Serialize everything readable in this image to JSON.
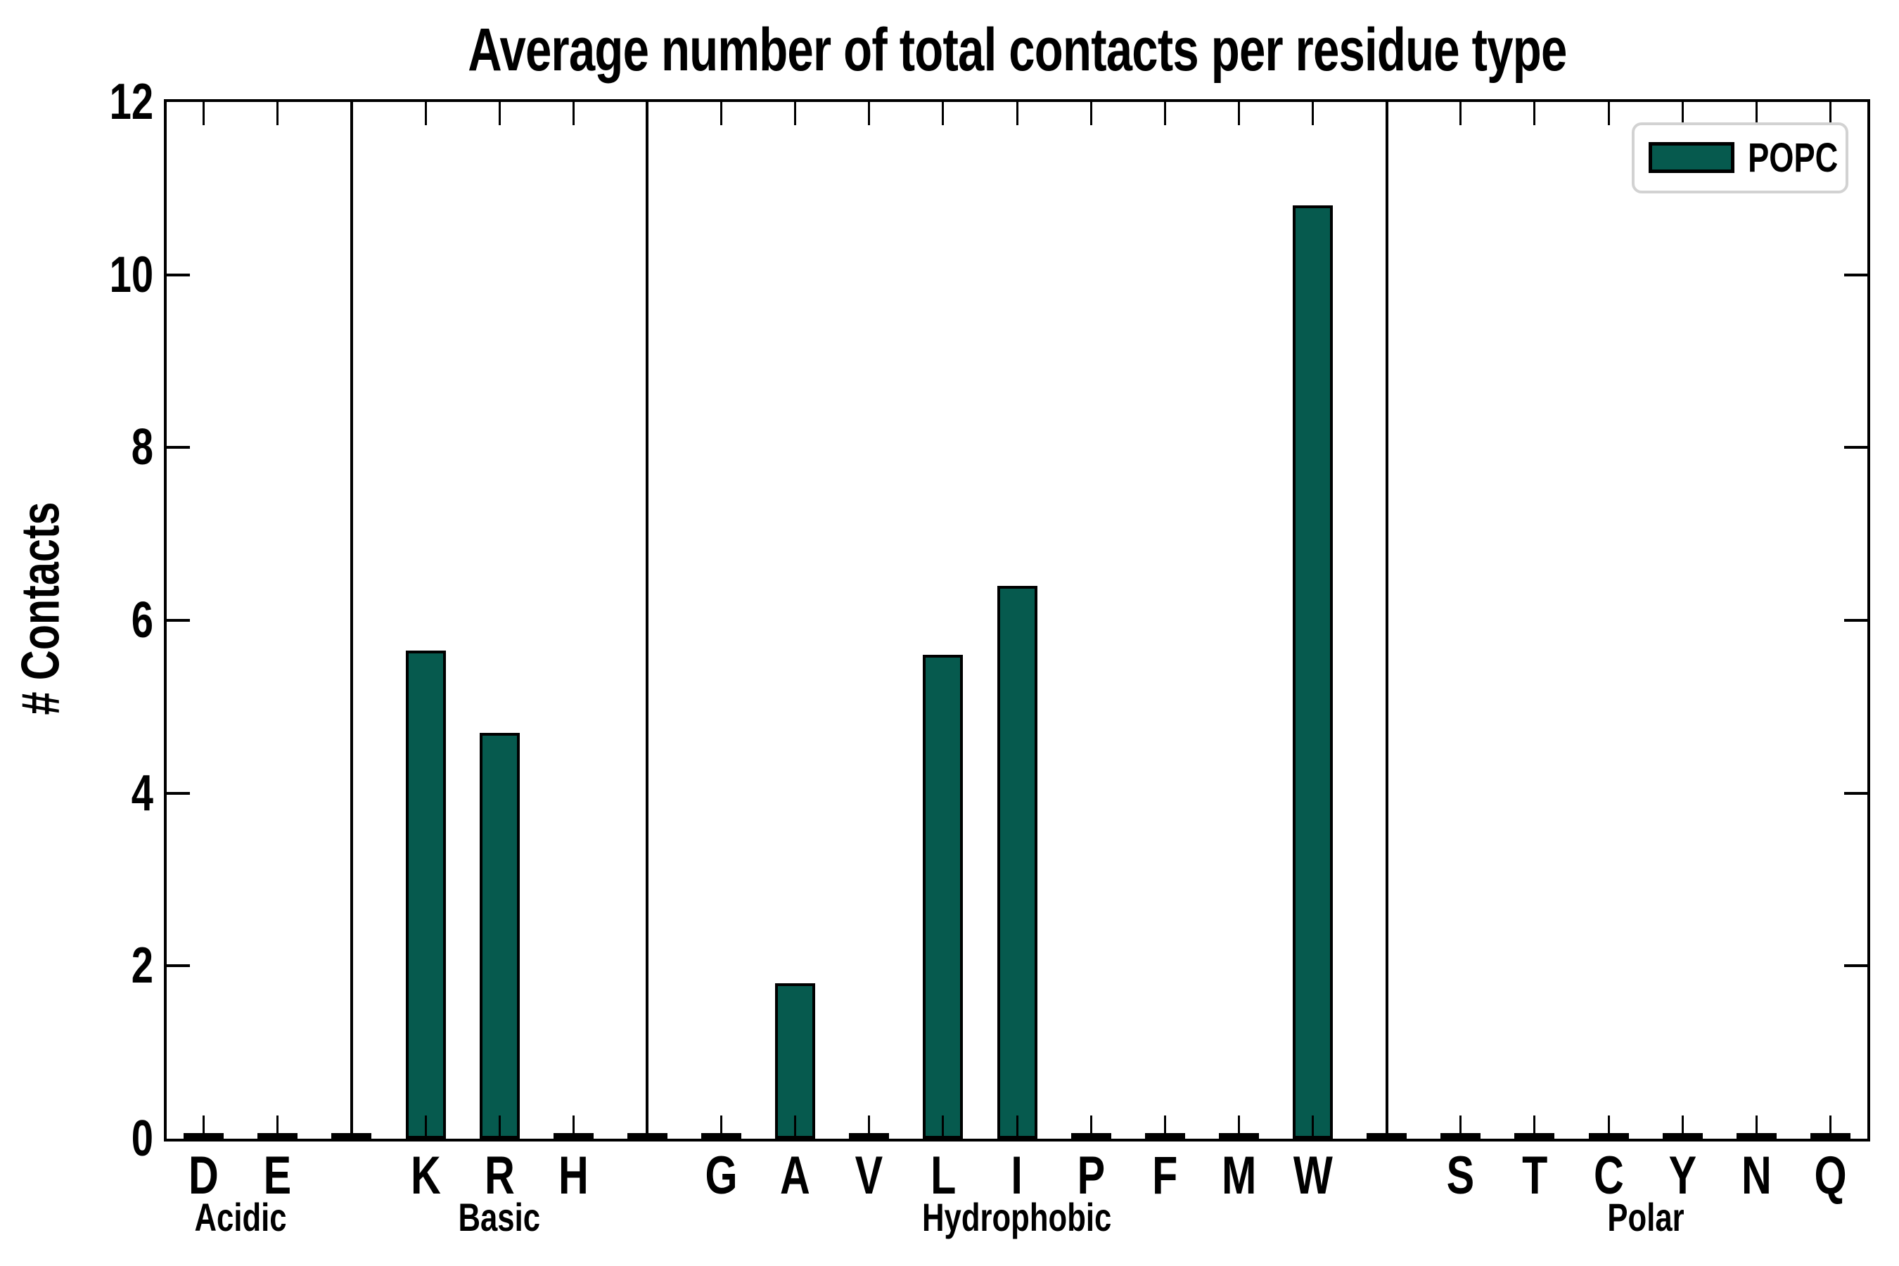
{
  "title": "Average number of total contacts per residue type",
  "ylabel": "# Contacts",
  "legend": {
    "label": "POPC"
  },
  "colors": {
    "bar_fill": "#065a4e",
    "bar_edge": "#000000",
    "axis": "#000000",
    "legend_border": "#d2d2d2",
    "background": "#ffffff"
  },
  "y_axis": {
    "min": 0,
    "max": 12,
    "tick_labels": [
      "0",
      "2",
      "4",
      "6",
      "8",
      "10",
      "12"
    ]
  },
  "chart_data": {
    "type": "bar",
    "title": "Average number of total contacts per residue type",
    "xlabel": "",
    "ylabel": "# Contacts",
    "ylim": [
      0,
      12
    ],
    "grid": false,
    "legend_entries": [
      "POPC"
    ],
    "legend_position": "upper right",
    "series_name": "POPC",
    "groups": [
      {
        "name": "Acidic",
        "categories": [
          "D",
          "E"
        ],
        "values": [
          0.03,
          0.03
        ]
      },
      {
        "name": "Basic",
        "categories": [
          "K",
          "R",
          "H"
        ],
        "values": [
          5.65,
          4.7,
          0.03
        ]
      },
      {
        "name": "Hydrophobic",
        "categories": [
          "G",
          "A",
          "V",
          "L",
          "I",
          "P",
          "F",
          "M",
          "W"
        ],
        "values": [
          0.03,
          1.8,
          0.03,
          5.6,
          6.4,
          0.03,
          0.03,
          0.03,
          10.8
        ]
      },
      {
        "name": "Polar",
        "categories": [
          "S",
          "T",
          "C",
          "Y",
          "N",
          "Q"
        ],
        "values": [
          0.03,
          0.03,
          0.03,
          0.03,
          0.03,
          0.03
        ]
      }
    ],
    "group_separators": true
  }
}
